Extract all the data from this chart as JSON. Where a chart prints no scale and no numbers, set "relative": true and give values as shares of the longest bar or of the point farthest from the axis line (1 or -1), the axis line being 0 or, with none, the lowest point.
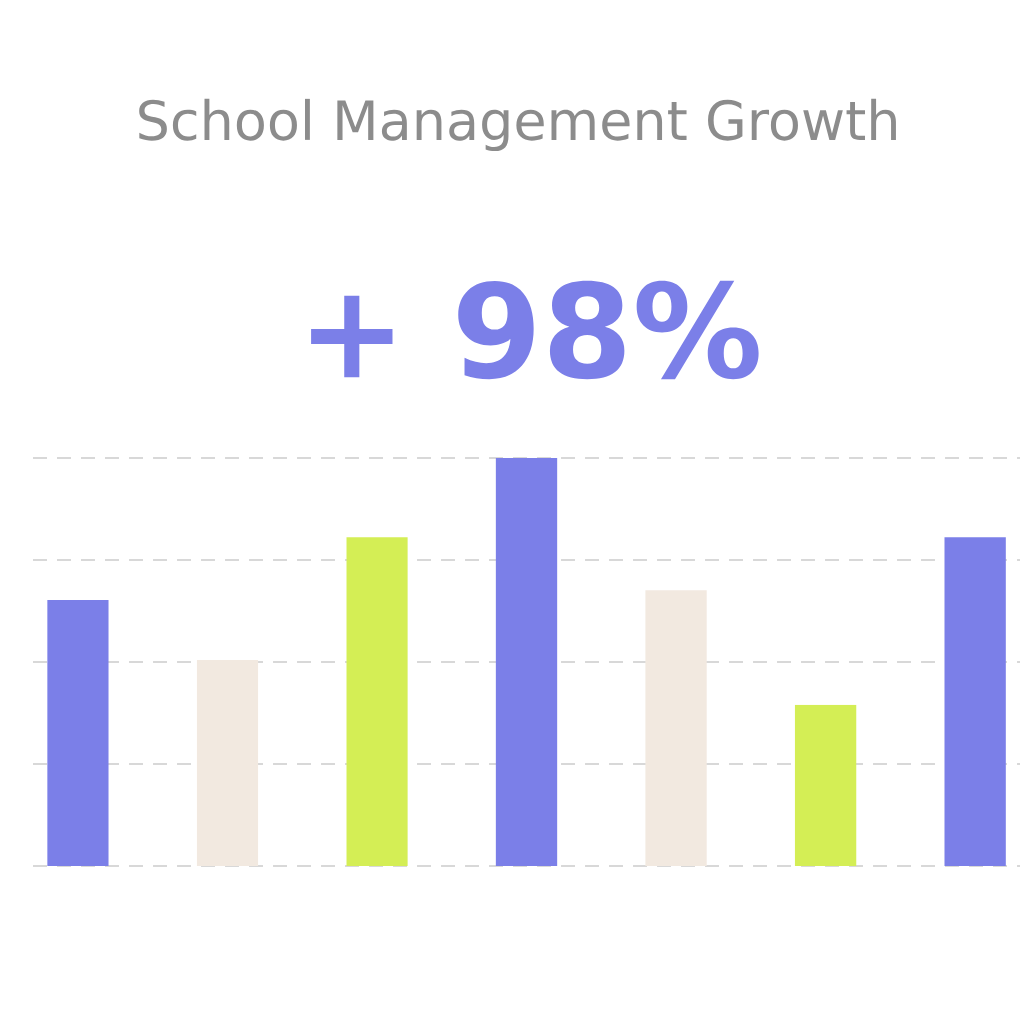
{
  "chart_data": {
    "type": "bar",
    "title": "School Management Growth",
    "annotations": [
      "+ 98%"
    ],
    "categories": [
      null,
      null,
      null,
      null,
      null,
      null,
      null
    ],
    "values": [
      0.652,
      0.505,
      0.806,
      1,
      0.676,
      0.395,
      0.806
    ],
    "colors": [
      "#7b7fe8",
      "#f2e9e0",
      "#d4ee55",
      "#7b7fe8",
      "#f2e9e0",
      "#d4ee55",
      "#7b7fe8"
    ],
    "relative": true,
    "grid": "y"
  }
}
